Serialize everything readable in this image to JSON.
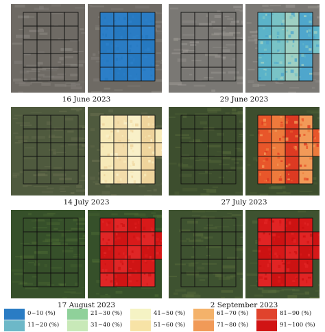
{
  "panels": [
    {
      "date": "16 June 2023",
      "bg": "#6e6a64",
      "bgAlt": "#8a8680",
      "fills": [
        "#2a7cc4",
        "#2c7fc8",
        "#2679c0"
      ],
      "extraBlocks": 0
    },
    {
      "date": "29 June 2023",
      "bg": "#7a7874",
      "bgAlt": "#9b9893",
      "fills": [
        "#5bb3c9",
        "#79c3c6",
        "#9ed0c3",
        "#4fa6cc"
      ],
      "extraBlocks": 2
    },
    {
      "date": "14 July 2023",
      "bg": "#4f5a3e",
      "bgAlt": "#6a7050",
      "fills": [
        "#f7eab8",
        "#f3ddaa",
        "#f9f0c8",
        "#efd49c"
      ],
      "extraBlocks": 2
    },
    {
      "date": "27 July 2023",
      "bg": "#3d4e2e",
      "bgAlt": "#55683a",
      "fills": [
        "#e8562a",
        "#ee7a3c",
        "#dd3a22",
        "#f29a58"
      ],
      "extraBlocks": 2
    },
    {
      "date": "17 August 2023",
      "bg": "#36502a",
      "bgAlt": "#4d6a34",
      "fills": [
        "#d81a1a",
        "#e02626",
        "#cf1414"
      ],
      "extraBlocks": 2
    },
    {
      "date": "2 September 2023",
      "bg": "#3e5230",
      "bgAlt": "#5a6d3c",
      "fills": [
        "#d61818",
        "#e12424",
        "#cc1212"
      ],
      "extraBlocks": 2
    }
  ],
  "legend": [
    {
      "label": "0~10 (%)",
      "color": "#2a7cc4"
    },
    {
      "label": "11~20 (%)",
      "color": "#6db8c8"
    },
    {
      "label": "21~30 (%)",
      "color": "#8fd19a"
    },
    {
      "label": "31~40 (%)",
      "color": "#c8e9b8"
    },
    {
      "label": "41~50 (%)",
      "color": "#f5f3c4"
    },
    {
      "label": "51~60 (%)",
      "color": "#f7e3a6"
    },
    {
      "label": "61~70 (%)",
      "color": "#f4b26a"
    },
    {
      "label": "71~80 (%)",
      "color": "#f19a58"
    },
    {
      "label": "81~90 (%)",
      "color": "#e0432c"
    },
    {
      "label": "91~100 (%)",
      "color": "#d11414"
    }
  ]
}
